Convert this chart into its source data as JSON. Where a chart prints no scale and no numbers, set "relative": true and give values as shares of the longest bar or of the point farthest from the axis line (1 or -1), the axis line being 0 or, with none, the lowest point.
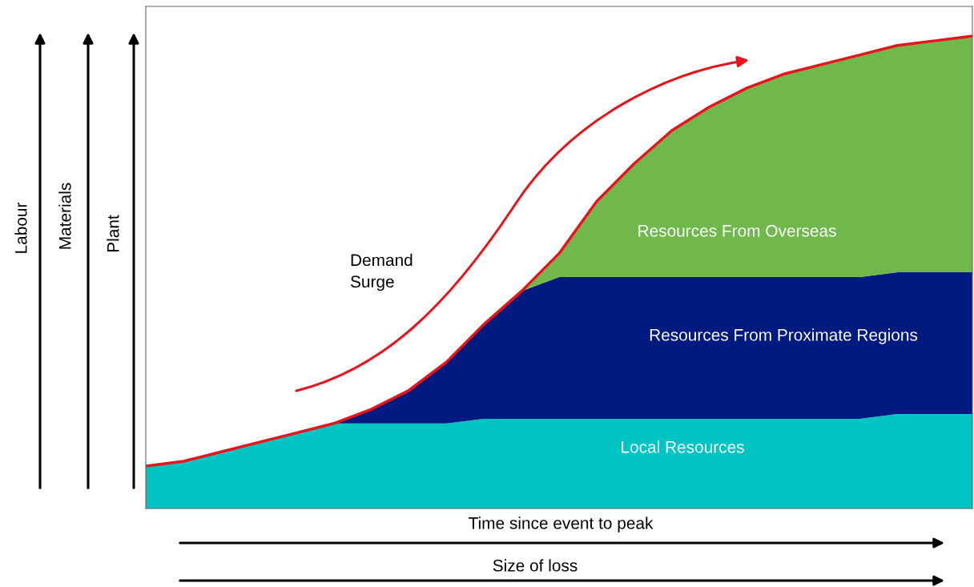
{
  "chart_data": {
    "type": "area",
    "stacked": true,
    "relative": true,
    "grid": false,
    "legend": false,
    "xlabel": "Time since event to peak",
    "annotations": [
      "Demand Surge",
      "Labour",
      "Materials",
      "Plant",
      "Size of loss"
    ],
    "categories": [
      null,
      null,
      null,
      null,
      null,
      null,
      null,
      null,
      null,
      null,
      null,
      null,
      null,
      null,
      null,
      null,
      null,
      null,
      null,
      null,
      null,
      null,
      null
    ],
    "series": [
      {
        "name": "Local Resources",
        "color": "#00c4c4",
        "values": [
          0.09,
          0.1,
          0.12,
          0.14,
          0.16,
          0.18,
          0.18,
          0.18,
          0.18,
          0.19,
          0.19,
          0.19,
          0.19,
          0.19,
          0.19,
          0.19,
          0.19,
          0.19,
          0.19,
          0.19,
          0.2,
          0.2,
          0.2
        ]
      },
      {
        "name": "Resources From Proximate Regions",
        "color": "#001a80",
        "values": [
          0,
          0,
          0,
          0,
          0,
          0,
          0.03,
          0.07,
          0.13,
          0.2,
          0.27,
          0.3,
          0.3,
          0.3,
          0.3,
          0.3,
          0.3,
          0.3,
          0.3,
          0.3,
          0.3,
          0.3,
          0.3
        ]
      },
      {
        "name": "Resources From Overseas",
        "color": "#70b84c",
        "values": [
          0,
          0,
          0,
          0,
          0,
          0,
          0,
          0,
          0,
          0,
          0,
          0.05,
          0.16,
          0.24,
          0.31,
          0.36,
          0.4,
          0.43,
          0.45,
          0.47,
          0.48,
          0.49,
          0.5
        ]
      }
    ]
  }
}
